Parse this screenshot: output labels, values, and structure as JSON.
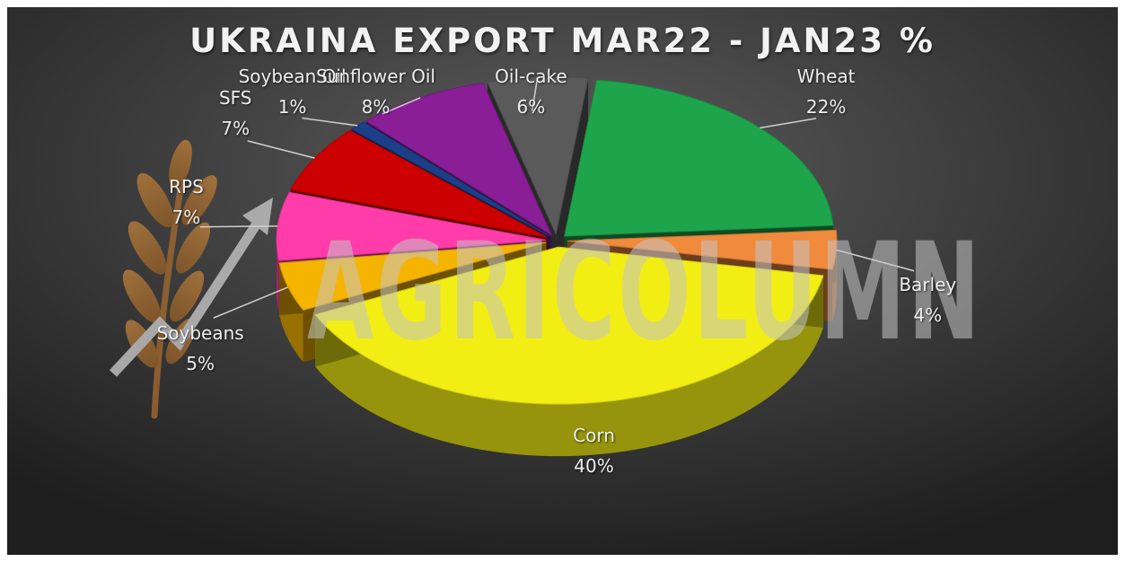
{
  "chart_data": {
    "type": "pie",
    "title": "UKRAINA EXPORT MAR22 - JAN23 %",
    "watermark": "AGRICOLUMN",
    "exploded": true,
    "three_d": true,
    "background": "#3a3a3a",
    "slices": [
      {
        "name": "Wheat",
        "value": 22,
        "value_label": "22%",
        "color": "#1ea54c"
      },
      {
        "name": "Barley",
        "value": 4,
        "value_label": "4%",
        "color": "#f08a3c"
      },
      {
        "name": "Corn",
        "value": 40,
        "value_label": "40%",
        "color": "#f2ee14"
      },
      {
        "name": "Soybeans",
        "value": 5,
        "value_label": "5%",
        "color": "#f5b400"
      },
      {
        "name": "RPS",
        "value": 7,
        "value_label": "7%",
        "color": "#ff3caa"
      },
      {
        "name": "SFS",
        "value": 7,
        "value_label": "7%",
        "color": "#cc0000"
      },
      {
        "name": "Soybean Oil",
        "value": 1,
        "value_label": "1%",
        "color": "#1c3f8a"
      },
      {
        "name": "Sunflower Oil",
        "value": 8,
        "value_label": "8%",
        "color": "#8a1e96"
      },
      {
        "name": "Oil-cake",
        "value": 6,
        "value_label": "6%",
        "color": "#5a5a5a"
      }
    ]
  }
}
